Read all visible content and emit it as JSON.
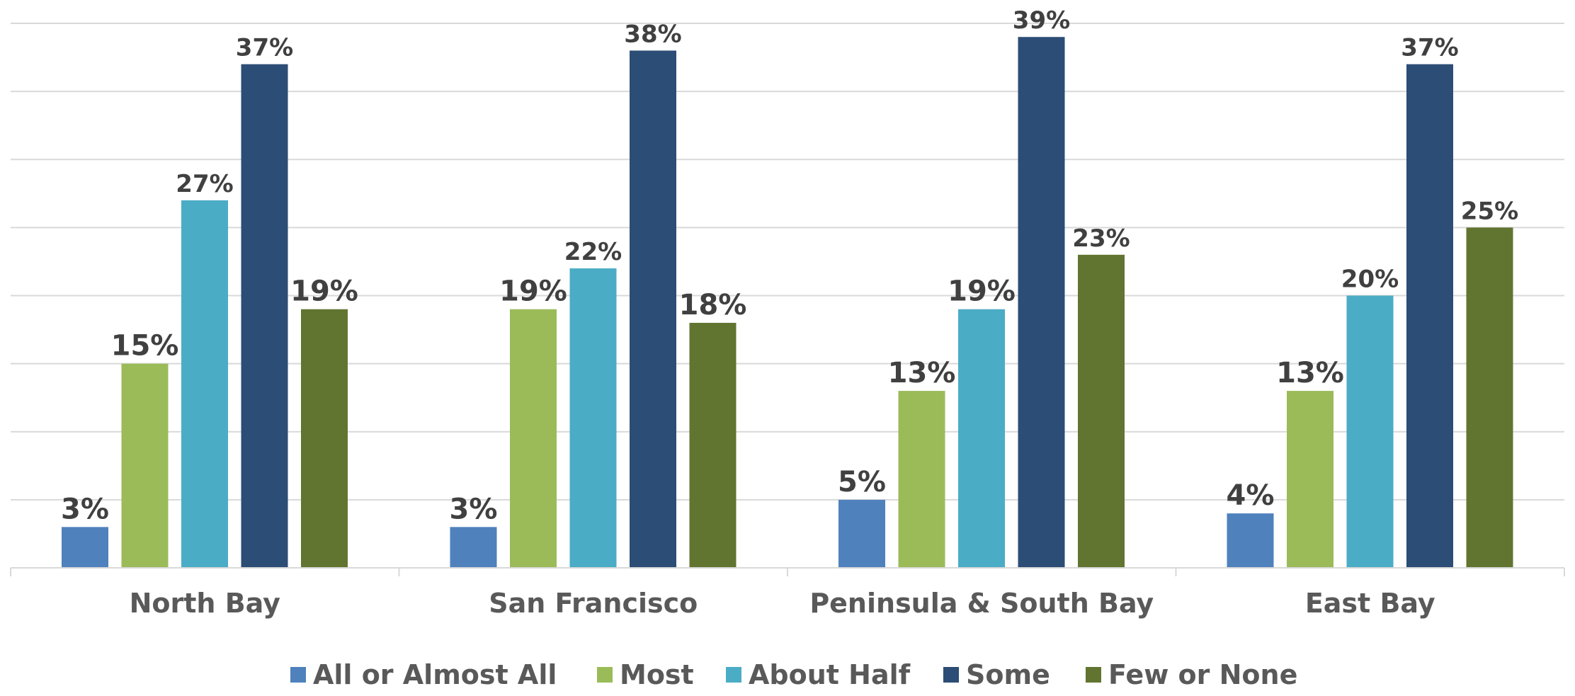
{
  "chart_data": {
    "type": "bar",
    "title": "",
    "xlabel": "",
    "ylabel": "",
    "ylim": [
      0,
      40
    ],
    "y_gridline_step": 5,
    "grid": true,
    "legend_position": "bottom",
    "categories": [
      "North Bay",
      "San Francisco",
      "Peninsula & South Bay",
      "East Bay"
    ],
    "series": [
      {
        "name": "All or Almost All",
        "color": "#4F81BD",
        "values": [
          3,
          3,
          5,
          4
        ]
      },
      {
        "name": "Most",
        "color": "#9BBB59",
        "values": [
          15,
          19,
          13,
          13
        ]
      },
      {
        "name": "About Half",
        "color": "#4BACC6",
        "values": [
          27,
          22,
          19,
          20
        ]
      },
      {
        "name": "Some",
        "color": "#2C4D75",
        "values": [
          37,
          38,
          39,
          37
        ]
      },
      {
        "name": "Few or None",
        "color": "#617530",
        "values": [
          19,
          18,
          23,
          25
        ]
      }
    ],
    "value_suffix": "%"
  }
}
